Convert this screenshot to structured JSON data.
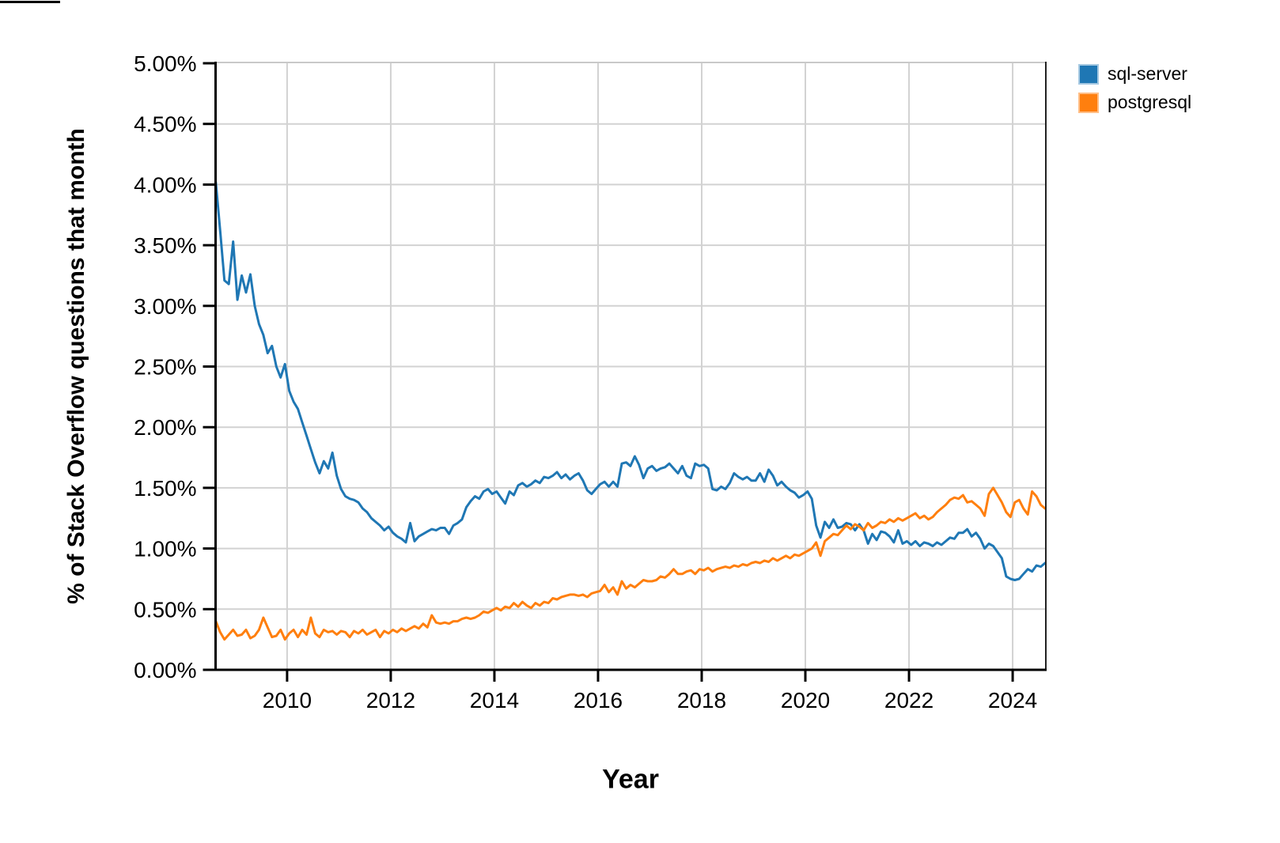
{
  "axes": {
    "x_title": "Year",
    "y_title": "% of Stack Overflow questions that month"
  },
  "chart_data": {
    "type": "line",
    "title": "",
    "xlabel": "Year",
    "ylabel": "% of Stack Overflow questions that month",
    "x_start": "2008-08",
    "frequency": "monthly",
    "x_domain_years": [
      2008.62,
      2024.64
    ],
    "ylim": [
      0,
      5
    ],
    "y_tick_step": 0.5,
    "y_tick_labels": [
      "0.00%",
      "0.50%",
      "1.00%",
      "1.50%",
      "2.00%",
      "2.50%",
      "3.00%",
      "3.50%",
      "4.00%",
      "4.50%",
      "5.00%"
    ],
    "x_tick_years": [
      2010,
      2012,
      2014,
      2016,
      2018,
      2020,
      2022,
      2024
    ],
    "grid": true,
    "legend_position": "top-right",
    "grid_color": "#d2d2d2",
    "series": [
      {
        "name": "sql-server",
        "color": "#1f77b4",
        "swatch_border": "#a6c9e2",
        "values": [
          4.02,
          3.62,
          3.21,
          3.18,
          3.53,
          3.05,
          3.25,
          3.11,
          3.26,
          3.0,
          2.85,
          2.76,
          2.61,
          2.67,
          2.5,
          2.41,
          2.52,
          2.3,
          2.21,
          2.15,
          2.04,
          1.93,
          1.82,
          1.71,
          1.62,
          1.72,
          1.66,
          1.79,
          1.6,
          1.49,
          1.43,
          1.41,
          1.4,
          1.38,
          1.33,
          1.3,
          1.25,
          1.22,
          1.19,
          1.15,
          1.18,
          1.13,
          1.1,
          1.08,
          1.05,
          1.21,
          1.06,
          1.1,
          1.12,
          1.14,
          1.16,
          1.15,
          1.17,
          1.17,
          1.12,
          1.19,
          1.21,
          1.24,
          1.34,
          1.39,
          1.43,
          1.41,
          1.47,
          1.49,
          1.45,
          1.47,
          1.42,
          1.37,
          1.47,
          1.44,
          1.52,
          1.54,
          1.51,
          1.53,
          1.56,
          1.54,
          1.59,
          1.58,
          1.6,
          1.63,
          1.58,
          1.61,
          1.57,
          1.6,
          1.62,
          1.56,
          1.48,
          1.45,
          1.49,
          1.53,
          1.55,
          1.51,
          1.55,
          1.51,
          1.7,
          1.71,
          1.68,
          1.76,
          1.69,
          1.58,
          1.66,
          1.68,
          1.64,
          1.66,
          1.67,
          1.7,
          1.66,
          1.62,
          1.68,
          1.6,
          1.58,
          1.7,
          1.68,
          1.69,
          1.66,
          1.49,
          1.48,
          1.51,
          1.49,
          1.54,
          1.62,
          1.59,
          1.57,
          1.59,
          1.56,
          1.56,
          1.62,
          1.55,
          1.65,
          1.6,
          1.52,
          1.55,
          1.51,
          1.48,
          1.46,
          1.42,
          1.44,
          1.47,
          1.41,
          1.19,
          1.09,
          1.22,
          1.17,
          1.24,
          1.17,
          1.18,
          1.21,
          1.2,
          1.15,
          1.2,
          1.15,
          1.04,
          1.12,
          1.07,
          1.14,
          1.13,
          1.1,
          1.05,
          1.15,
          1.04,
          1.06,
          1.03,
          1.06,
          1.02,
          1.05,
          1.04,
          1.02,
          1.05,
          1.03,
          1.06,
          1.09,
          1.08,
          1.13,
          1.13,
          1.16,
          1.1,
          1.13,
          1.08,
          1.0,
          1.04,
          1.02,
          0.97,
          0.92,
          0.77,
          0.75,
          0.74,
          0.75,
          0.79,
          0.83,
          0.81,
          0.86,
          0.85,
          0.88
        ]
      },
      {
        "name": "postgresql",
        "color": "#ff7f0e",
        "swatch_border": "#ffbe86",
        "values": [
          0.4,
          0.31,
          0.25,
          0.29,
          0.33,
          0.28,
          0.29,
          0.33,
          0.26,
          0.28,
          0.33,
          0.43,
          0.35,
          0.27,
          0.28,
          0.33,
          0.25,
          0.3,
          0.33,
          0.27,
          0.33,
          0.29,
          0.43,
          0.3,
          0.27,
          0.33,
          0.31,
          0.32,
          0.29,
          0.32,
          0.31,
          0.27,
          0.32,
          0.3,
          0.33,
          0.29,
          0.31,
          0.33,
          0.27,
          0.32,
          0.3,
          0.33,
          0.31,
          0.34,
          0.32,
          0.34,
          0.36,
          0.34,
          0.38,
          0.35,
          0.45,
          0.39,
          0.38,
          0.39,
          0.38,
          0.4,
          0.4,
          0.42,
          0.43,
          0.42,
          0.43,
          0.45,
          0.48,
          0.47,
          0.49,
          0.51,
          0.49,
          0.52,
          0.51,
          0.55,
          0.52,
          0.56,
          0.53,
          0.51,
          0.55,
          0.53,
          0.56,
          0.55,
          0.59,
          0.58,
          0.6,
          0.61,
          0.62,
          0.62,
          0.61,
          0.62,
          0.6,
          0.63,
          0.64,
          0.65,
          0.7,
          0.64,
          0.68,
          0.62,
          0.73,
          0.67,
          0.7,
          0.68,
          0.71,
          0.74,
          0.73,
          0.73,
          0.74,
          0.77,
          0.76,
          0.79,
          0.83,
          0.79,
          0.79,
          0.81,
          0.82,
          0.79,
          0.83,
          0.82,
          0.84,
          0.81,
          0.83,
          0.84,
          0.85,
          0.84,
          0.86,
          0.85,
          0.87,
          0.86,
          0.88,
          0.89,
          0.88,
          0.9,
          0.89,
          0.92,
          0.9,
          0.92,
          0.94,
          0.92,
          0.95,
          0.94,
          0.96,
          0.98,
          1.0,
          1.05,
          0.94,
          1.06,
          1.09,
          1.12,
          1.11,
          1.15,
          1.19,
          1.16,
          1.2,
          1.18,
          1.15,
          1.21,
          1.17,
          1.19,
          1.22,
          1.21,
          1.24,
          1.22,
          1.25,
          1.23,
          1.25,
          1.27,
          1.29,
          1.25,
          1.27,
          1.24,
          1.26,
          1.3,
          1.33,
          1.36,
          1.4,
          1.42,
          1.41,
          1.44,
          1.38,
          1.39,
          1.36,
          1.33,
          1.27,
          1.45,
          1.5,
          1.44,
          1.38,
          1.3,
          1.26,
          1.38,
          1.4,
          1.33,
          1.28,
          1.47,
          1.43,
          1.36,
          1.33
        ]
      }
    ]
  }
}
